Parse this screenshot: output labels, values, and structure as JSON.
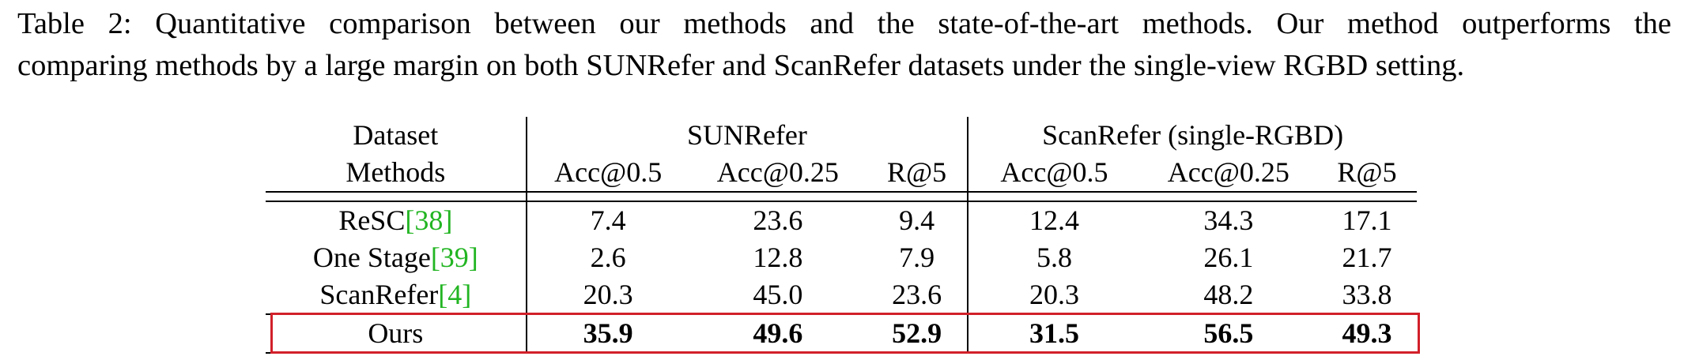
{
  "caption": {
    "line1": "Table 2: Quantitative comparison between our methods and the state-of-the-art methods. Our method outperforms the",
    "line2": "comparing methods by a large margin on both SUNRefer and ScanRefer datasets under the single-view RGBD setting."
  },
  "table": {
    "header_row1": {
      "dataset_label": "Dataset",
      "group1": "SUNRefer",
      "group2": "ScanRefer (single-RGBD)"
    },
    "header_row2": {
      "methods_label": "Methods",
      "columns": [
        "Acc@0.5",
        "Acc@0.25",
        "R@5",
        "Acc@0.5",
        "Acc@0.25",
        "R@5"
      ]
    },
    "rows": [
      {
        "method": "ReSC",
        "cite": "[38]",
        "values": [
          "7.4",
          "23.6",
          "9.4",
          "12.4",
          "34.3",
          "17.1"
        ]
      },
      {
        "method": "One Stage",
        "cite": "[39]",
        "values": [
          "2.6",
          "12.8",
          "7.9",
          "5.8",
          "26.1",
          "21.7"
        ]
      },
      {
        "method": "ScanRefer",
        "cite": "[4]",
        "values": [
          "20.3",
          "45.0",
          "23.6",
          "20.3",
          "48.2",
          "33.8"
        ]
      },
      {
        "method": "Ours",
        "cite": "",
        "values": [
          "35.9",
          "49.6",
          "52.9",
          "31.5",
          "56.5",
          "49.3"
        ]
      }
    ],
    "highlight_color": "#d2202a",
    "cite_color": "#22b522"
  }
}
